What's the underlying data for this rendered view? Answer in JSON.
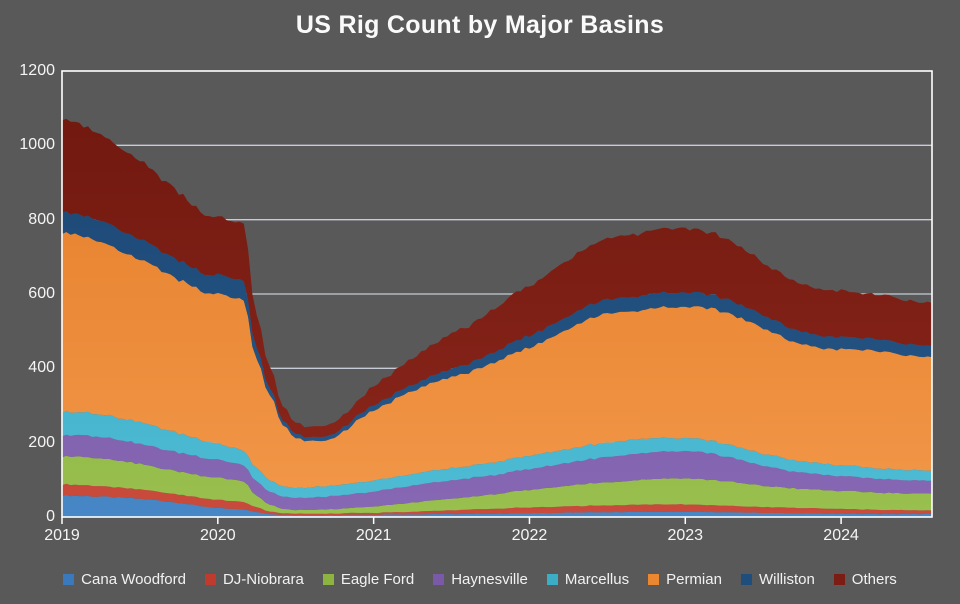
{
  "title": "US Rig Count by Major Basins",
  "colors": {
    "background": "#595959",
    "title_text": "#FAFAFA",
    "axis_text": "#F5F5F5",
    "gridline": "#D9E2F0",
    "plot_border": "#FFFFFF",
    "legend_text": "#F2F2F2"
  },
  "y_axis": {
    "tick_labels": [
      "0",
      "200",
      "400",
      "600",
      "800",
      "1000",
      "1200"
    ],
    "min": 0,
    "max": 1200
  },
  "x_axis": {
    "tick_labels": [
      "2019",
      "2020",
      "2021",
      "2022",
      "2023",
      "2024"
    ]
  },
  "chart_data": {
    "type": "area",
    "stacked": true,
    "title": "US Rig Count by Major Basins",
    "xlabel": "",
    "ylabel": "",
    "ylim": [
      0,
      1200
    ],
    "grid": true,
    "legend_position": "bottom",
    "x_unit": "month",
    "x_monthly": [
      "2019-01",
      "2019-02",
      "2019-03",
      "2019-04",
      "2019-05",
      "2019-06",
      "2019-07",
      "2019-08",
      "2019-09",
      "2019-10",
      "2019-11",
      "2019-12",
      "2020-01",
      "2020-02",
      "2020-03",
      "2020-04",
      "2020-05",
      "2020-06",
      "2020-07",
      "2020-08",
      "2020-09",
      "2020-10",
      "2020-11",
      "2020-12",
      "2021-01",
      "2021-02",
      "2021-03",
      "2021-04",
      "2021-05",
      "2021-06",
      "2021-07",
      "2021-08",
      "2021-09",
      "2021-10",
      "2021-11",
      "2021-12",
      "2022-01",
      "2022-02",
      "2022-03",
      "2022-04",
      "2022-05",
      "2022-06",
      "2022-07",
      "2022-08",
      "2022-09",
      "2022-10",
      "2022-11",
      "2022-12",
      "2023-01",
      "2023-02",
      "2023-03",
      "2023-04",
      "2023-05",
      "2023-06",
      "2023-07",
      "2023-08",
      "2023-09",
      "2023-10",
      "2023-11",
      "2023-12",
      "2024-01",
      "2024-02",
      "2024-03",
      "2024-04",
      "2024-05",
      "2024-06",
      "2024-07",
      "2024-08"
    ],
    "series": [
      {
        "name": "Cana Woodford",
        "color": "#3A79BC",
        "shade_top": "#2F6BAE",
        "shade_bottom": "#4787C6",
        "values": [
          58,
          57,
          56,
          55,
          53,
          51,
          49,
          46,
          42,
          38,
          33,
          28,
          24,
          22,
          20,
          13,
          8,
          6,
          5,
          5,
          5,
          5,
          6,
          6,
          6,
          7,
          7,
          7,
          8,
          8,
          8,
          8,
          9,
          9,
          9,
          10,
          10,
          11,
          11,
          12,
          12,
          13,
          13,
          13,
          14,
          14,
          14,
          14,
          14,
          14,
          13,
          13,
          12,
          12,
          11,
          11,
          10,
          10,
          10,
          9,
          9,
          9,
          8,
          8,
          8,
          8,
          8,
          8
        ]
      },
      {
        "name": "DJ-Niobrara",
        "color": "#BE3B2E",
        "shade_top": "#B23228",
        "shade_bottom": "#C94B3C",
        "values": [
          30,
          30,
          29,
          28,
          27,
          26,
          25,
          24,
          23,
          23,
          22,
          22,
          22,
          21,
          20,
          13,
          7,
          4,
          4,
          4,
          4,
          4,
          5,
          5,
          5,
          6,
          6,
          7,
          8,
          9,
          10,
          11,
          12,
          13,
          14,
          15,
          15,
          16,
          16,
          17,
          17,
          18,
          18,
          19,
          19,
          20,
          20,
          20,
          20,
          19,
          19,
          18,
          17,
          16,
          16,
          15,
          15,
          14,
          14,
          13,
          13,
          12,
          12,
          11,
          11,
          10,
          10,
          10
        ]
      },
      {
        "name": "Eagle Ford",
        "color": "#8CB43F",
        "shade_top": "#81AA33",
        "shade_bottom": "#99C04F",
        "values": [
          77,
          76,
          75,
          74,
          72,
          70,
          68,
          66,
          64,
          62,
          61,
          60,
          59,
          58,
          56,
          30,
          18,
          12,
          10,
          10,
          11,
          12,
          13,
          15,
          17,
          19,
          22,
          25,
          27,
          29,
          31,
          33,
          35,
          38,
          41,
          44,
          47,
          50,
          53,
          56,
          58,
          60,
          62,
          64,
          66,
          68,
          69,
          70,
          70,
          69,
          68,
          66,
          63,
          60,
          57,
          55,
          53,
          51,
          50,
          49,
          48,
          48,
          47,
          46,
          46,
          45,
          45,
          44
        ]
      },
      {
        "name": "Haynesville",
        "color": "#7A59A8",
        "shade_top": "#6F4E9C",
        "shade_bottom": "#8768B4",
        "values": [
          57,
          57,
          58,
          58,
          57,
          56,
          55,
          54,
          52,
          51,
          50,
          49,
          48,
          46,
          44,
          39,
          35,
          33,
          32,
          33,
          34,
          35,
          36,
          38,
          40,
          42,
          44,
          46,
          47,
          48,
          49,
          50,
          51,
          52,
          53,
          54,
          56,
          58,
          60,
          62,
          64,
          66,
          68,
          69,
          70,
          71,
          72,
          72,
          73,
          72,
          70,
          67,
          63,
          58,
          54,
          50,
          46,
          44,
          42,
          41,
          40,
          39,
          38,
          37,
          36,
          36,
          35,
          35
        ]
      },
      {
        "name": "Marcellus",
        "color": "#3CADC6",
        "shade_top": "#2FA2BC",
        "shade_bottom": "#4FBCD4",
        "values": [
          63,
          62,
          62,
          61,
          60,
          59,
          58,
          56,
          54,
          52,
          49,
          46,
          43,
          41,
          39,
          35,
          31,
          28,
          27,
          27,
          28,
          28,
          29,
          29,
          30,
          30,
          31,
          31,
          32,
          32,
          33,
          33,
          34,
          34,
          35,
          35,
          36,
          36,
          37,
          37,
          38,
          38,
          39,
          39,
          39,
          38,
          37,
          36,
          35,
          35,
          34,
          34,
          33,
          33,
          32,
          32,
          31,
          30,
          30,
          29,
          29,
          29,
          28,
          28,
          28,
          27,
          27,
          27
        ]
      },
      {
        "name": "Permian",
        "color": "#EC8731",
        "shade_top": "#E37C26",
        "shade_bottom": "#F29749",
        "values": [
          485,
          480,
          470,
          462,
          454,
          445,
          438,
          430,
          421,
          413,
          405,
          398,
          402,
          404,
          405,
          290,
          230,
          165,
          135,
          125,
          124,
          130,
          145,
          172,
          190,
          200,
          212,
          224,
          232,
          240,
          246,
          251,
          258,
          265,
          275,
          285,
          292,
          300,
          312,
          324,
          335,
          343,
          347,
          349,
          345,
          348,
          351,
          353,
          354,
          353,
          354,
          355,
          350,
          345,
          337,
          331,
          320,
          314,
          312,
          309,
          315,
          313,
          315,
          316,
          313,
          310,
          307,
          305
        ]
      },
      {
        "name": "Williston",
        "color": "#1F4E7C",
        "shade_top": "#1B4470",
        "shade_bottom": "#26598B",
        "values": [
          55,
          56,
          57,
          57,
          56,
          55,
          54,
          53,
          52,
          51,
          50,
          50,
          51,
          52,
          52,
          30,
          18,
          12,
          11,
          10,
          11,
          11,
          12,
          13,
          14,
          15,
          16,
          17,
          18,
          20,
          22,
          23,
          25,
          27,
          29,
          31,
          32,
          33,
          34,
          35,
          36,
          37,
          38,
          38,
          39,
          40,
          40,
          39,
          38,
          38,
          37,
          37,
          36,
          36,
          35,
          35,
          34,
          34,
          33,
          33,
          33,
          32,
          32,
          32,
          31,
          31,
          31,
          30
        ]
      },
      {
        "name": "Others",
        "color": "#7B1D14",
        "shade_top": "#6F170E",
        "shade_bottom": "#8C271C",
        "values": [
          252,
          246,
          239,
          231,
          224,
          217,
          210,
          202,
          194,
          184,
          171,
          160,
          155,
          154,
          154,
          90,
          58,
          38,
          30,
          28,
          29,
          31,
          34,
          40,
          52,
          58,
          65,
          72,
          79,
          86,
          93,
          100,
          107,
          114,
          122,
          130,
          134,
          140,
          146,
          151,
          156,
          160,
          163,
          166,
          168,
          170,
          172,
          173,
          172,
          169,
          166,
          162,
          156,
          149,
          142,
          136,
          131,
          127,
          125,
          124,
          124,
          122,
          121,
          120,
          119,
          118,
          117,
          116
        ]
      }
    ]
  }
}
